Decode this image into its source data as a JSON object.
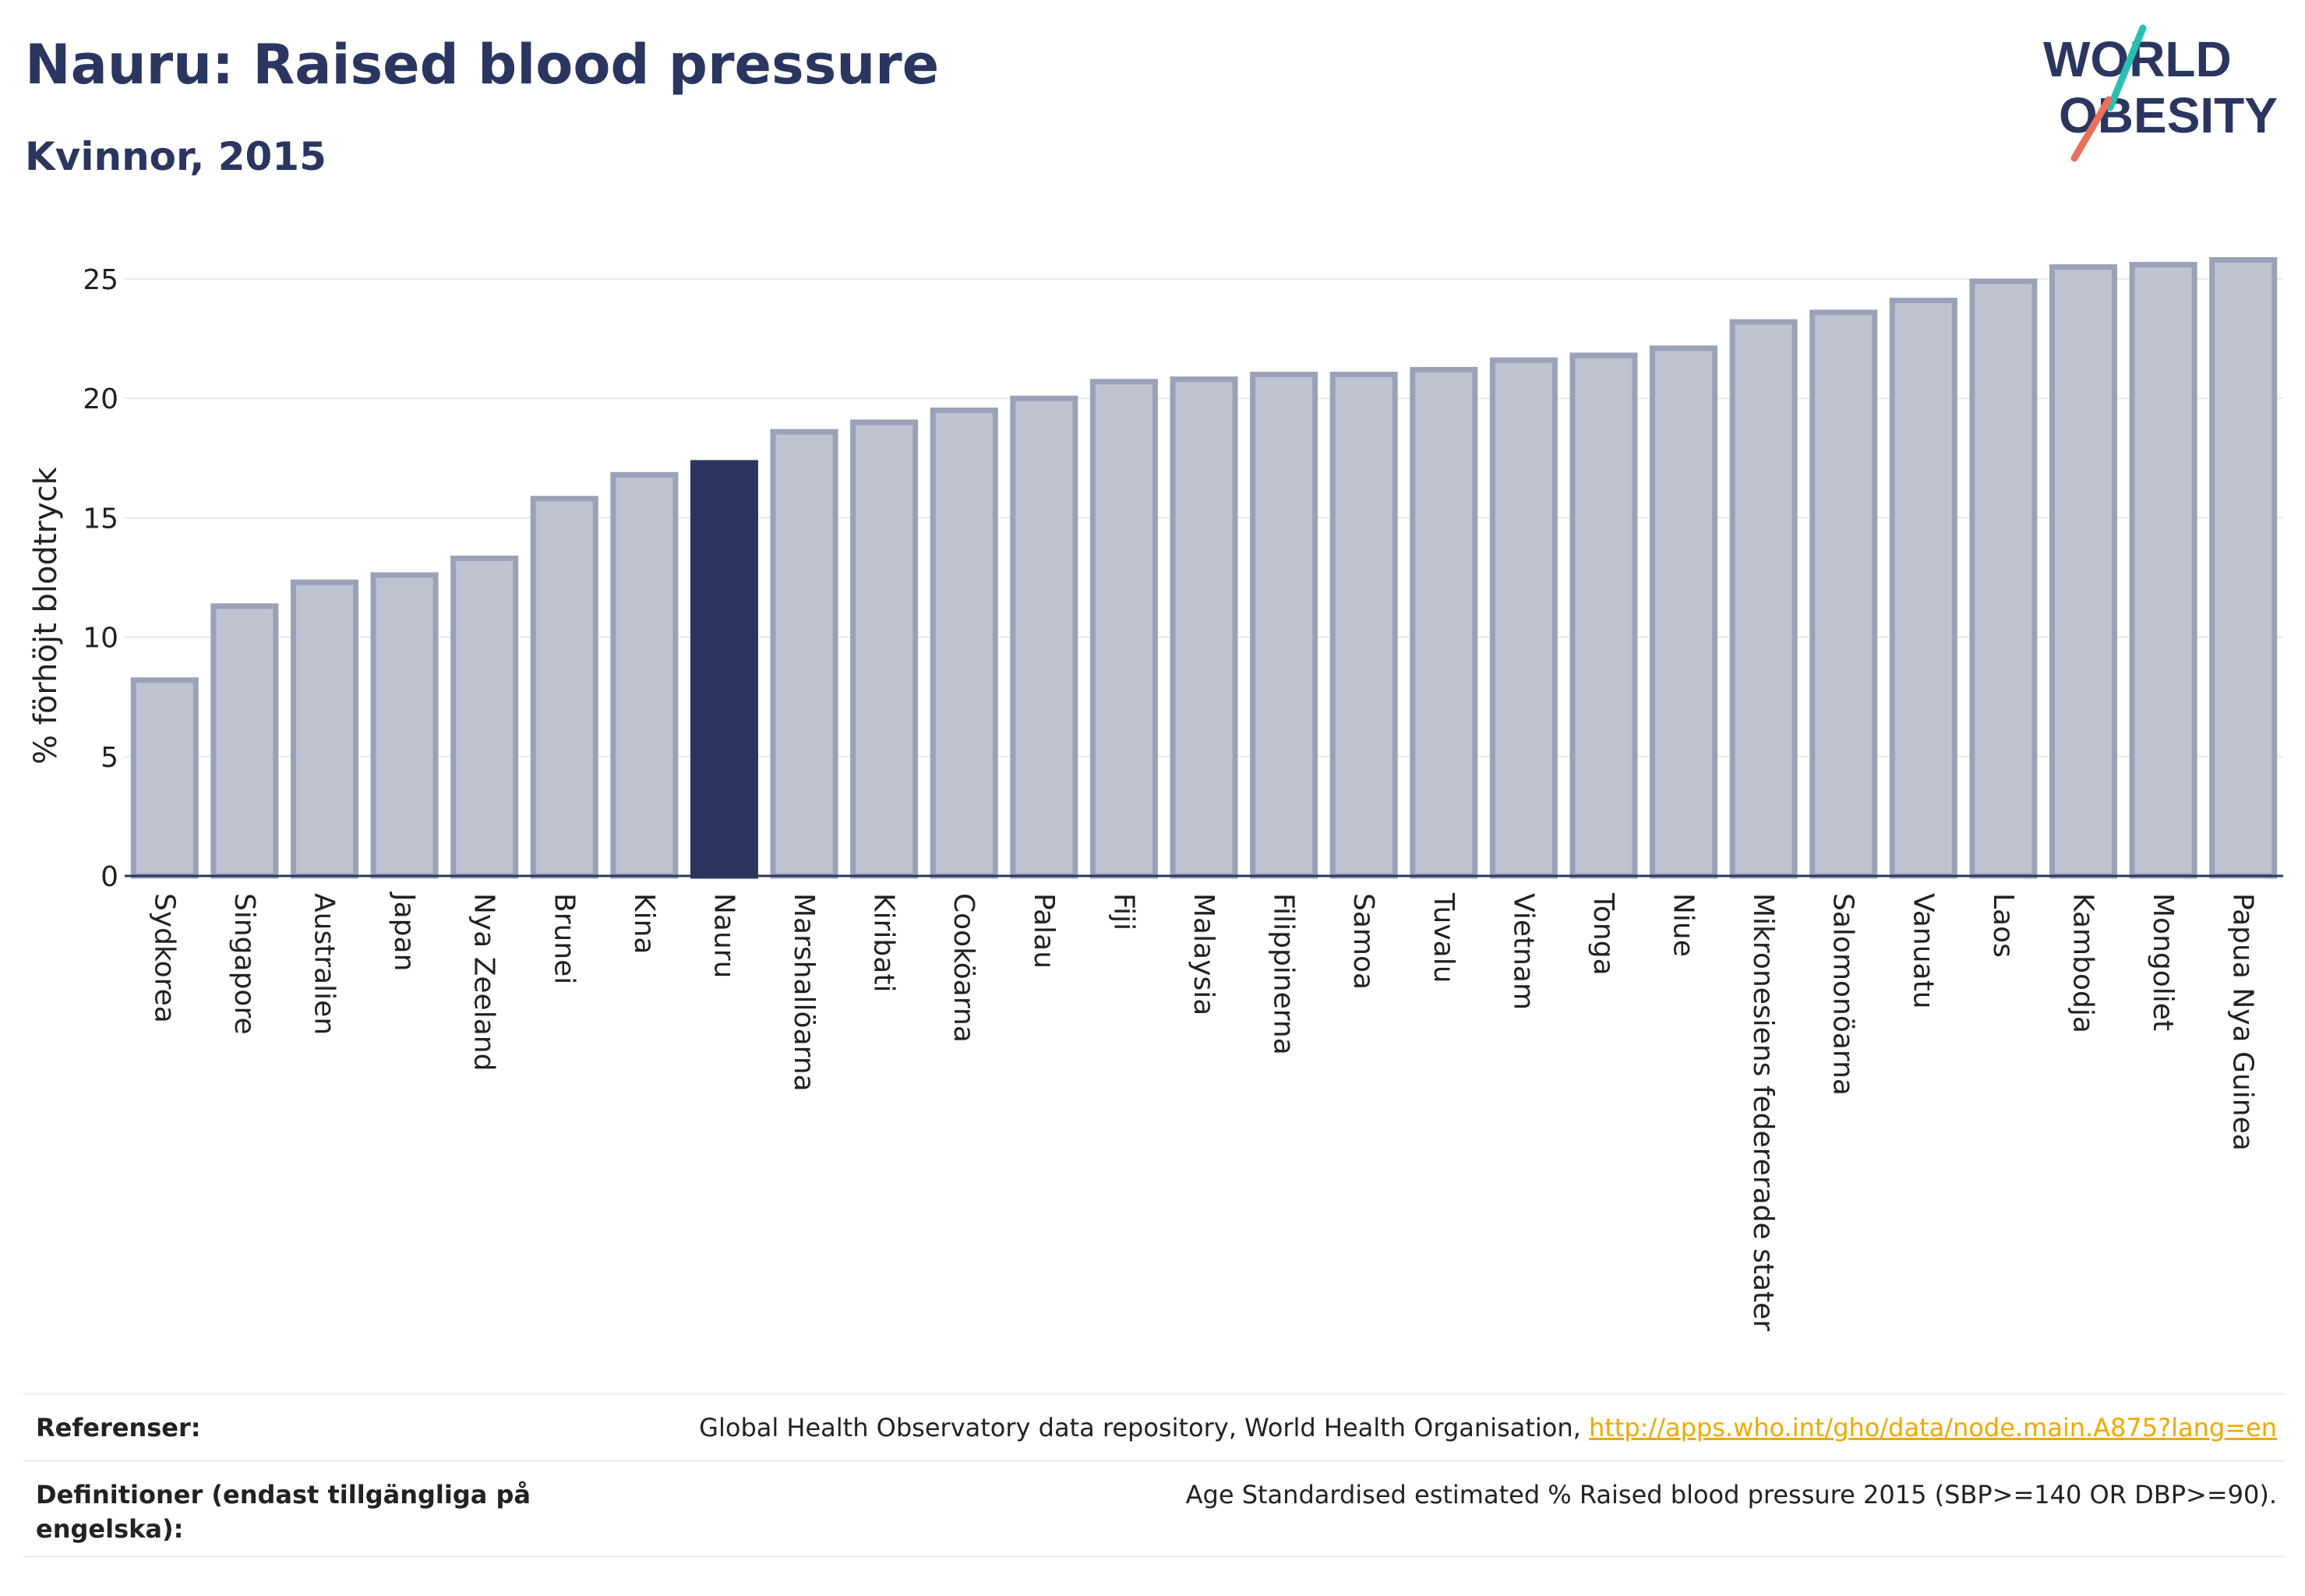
{
  "header": {
    "title": "Nauru: Raised blood pressure",
    "subtitle": "Kvinnor, 2015"
  },
  "logo": {
    "line1": "WORLD",
    "line2": "OBESITY"
  },
  "colors": {
    "highlight": "#2a3660",
    "bar": "#bfc3d0",
    "bar_outline": "#9aa1b8",
    "accent_teal": "#2bbfb3",
    "accent_coral": "#e8705c",
    "link": "#f0a800"
  },
  "chart_data": {
    "type": "bar",
    "ylabel": "% förhöjt blodtryck",
    "ylim": [
      0,
      26.5
    ],
    "yticks": [
      0,
      5,
      10,
      15,
      20,
      25
    ],
    "grid": true,
    "highlight": "Nauru",
    "categories": [
      "Sydkorea",
      "Singapore",
      "Australien",
      "Japan",
      "Nya Zeeland",
      "Brunei",
      "Kina",
      "Nauru",
      "Marshallöarna",
      "Kiribati",
      "Cooköarna",
      "Palau",
      "Fiji",
      "Malaysia",
      "Filippinerna",
      "Samoa",
      "Tuvalu",
      "Vietnam",
      "Tonga",
      "Niue",
      "Mikronesiens federerade stater",
      "Salomonöarna",
      "Vanuatu",
      "Laos",
      "Kambodja",
      "Mongoliet",
      "Papua Nya Guinea"
    ],
    "values": [
      8.2,
      11.3,
      12.3,
      12.6,
      13.3,
      15.8,
      16.8,
      17.3,
      18.6,
      19.0,
      19.5,
      20.0,
      20.7,
      20.8,
      21.0,
      21.0,
      21.2,
      21.6,
      21.8,
      22.1,
      23.2,
      23.6,
      24.1,
      24.9,
      25.5,
      25.6,
      25.8
    ]
  },
  "footer": {
    "references_label": "Referenser:",
    "references_text": "Global Health Observatory data repository, World Health Organisation, ",
    "references_link": "http://apps.who.int/gho/data/node.main.A875?lang=en",
    "definitions_label": "Definitioner (endast tillgängliga på engelska):",
    "definitions_text": "Age Standardised estimated % Raised blood pressure 2015 (SBP>=140 OR DBP>=90)."
  }
}
